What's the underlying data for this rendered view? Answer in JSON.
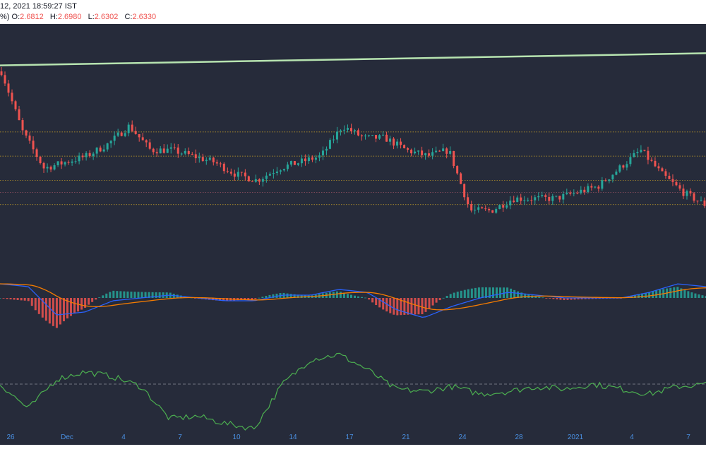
{
  "header": {
    "datetime": "12, 2021 18:59:27 IST",
    "pct_fragment": "%)",
    "ohlc": [
      {
        "label": "O:",
        "value": "2.6812"
      },
      {
        "label": "H:",
        "value": "2.6980"
      },
      {
        "label": "L:",
        "value": "2.6302"
      },
      {
        "label": "C:",
        "value": "2.6330"
      }
    ]
  },
  "colors": {
    "background": "#262b3a",
    "up": "#26a69a",
    "down": "#ef5350",
    "trendline": "#b7e4b0",
    "macd": "#2962ff",
    "signal": "#f57c00",
    "oscillator": "#4caf50",
    "level_line": "#c9a227",
    "axis_text": "#4a90e2"
  },
  "x_axis": {
    "ticks": [
      "26",
      "Dec",
      "4",
      "7",
      "10",
      "14",
      "17",
      "21",
      "24",
      "28",
      "2021",
      "4",
      "7"
    ]
  },
  "chart_data": {
    "type": "candlestick",
    "panels": [
      "price",
      "macd",
      "oscillator"
    ],
    "x_ticks": [
      "26",
      "Dec",
      "4",
      "7",
      "10",
      "14",
      "17",
      "21",
      "24",
      "28",
      "2021",
      "4",
      "7"
    ],
    "price_close_path": [
      2.86,
      2.76,
      2.7,
      2.71,
      2.72,
      2.74,
      2.77,
      2.73,
      2.73,
      2.72,
      2.71,
      2.69,
      2.68,
      2.7,
      2.71,
      2.72,
      2.77,
      2.75,
      2.75,
      2.73,
      2.72,
      2.73,
      2.63,
      2.63,
      2.65,
      2.65,
      2.65,
      2.66,
      2.67,
      2.7,
      2.73,
      2.69,
      2.66,
      2.64
    ],
    "trend_line": [
      2.87,
      2.89
    ],
    "horizontal_levels": [
      2.76,
      2.72,
      2.68,
      2.66,
      2.64
    ],
    "macd_line_path": [
      0.05,
      0.04,
      -0.06,
      -0.05,
      -0.01,
      0.0,
      0.01,
      0.0,
      -0.01,
      -0.01,
      0.01,
      0.01,
      0.03,
      0.02,
      -0.04,
      -0.07,
      -0.03,
      0.0,
      0.02,
      0.01,
      0.0,
      0.0,
      0.0,
      0.02,
      0.05,
      0.04
    ],
    "oscillator_path": [
      40,
      30,
      42,
      45,
      43,
      39,
      26,
      27,
      24,
      22,
      40,
      50,
      52,
      46,
      38,
      37,
      39,
      36,
      37,
      39,
      38,
      40,
      38,
      36,
      39,
      40
    ]
  }
}
